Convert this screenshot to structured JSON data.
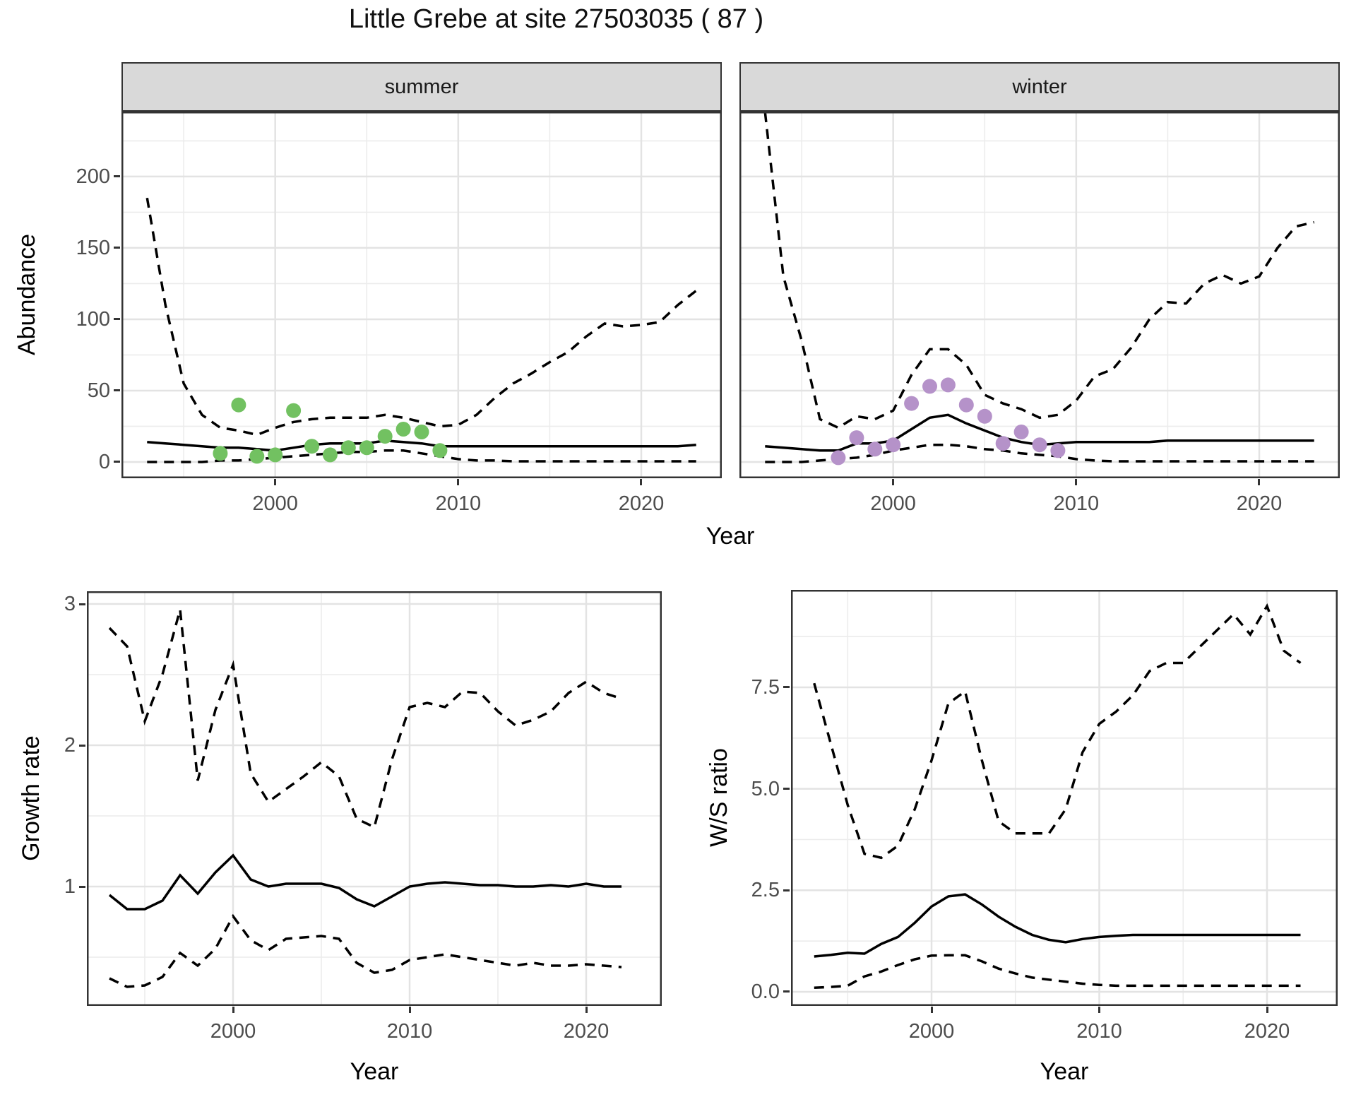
{
  "title": "Little Grebe at site 27503035 ( 87 )",
  "colors": {
    "summer_points": "#72C161",
    "winter_points": "#B592C9",
    "line": "#000000",
    "strip_background": "#D9D9D9",
    "panel_border": "#333333",
    "grid_major": "#E3E3E3",
    "grid_minor": "#ECECEC",
    "tick_text": "#4D4D4D"
  },
  "chart_data": [
    {
      "type": "line",
      "id": "abundance",
      "ylabel": "Abundance",
      "xlabel": "Year",
      "x": [
        1993,
        1994,
        1995,
        1996,
        1997,
        1998,
        1999,
        2000,
        2001,
        2002,
        2003,
        2004,
        2005,
        2006,
        2007,
        2008,
        2009,
        2010,
        2011,
        2012,
        2013,
        2014,
        2015,
        2016,
        2017,
        2018,
        2019,
        2020,
        2021,
        2022,
        2023
      ],
      "xlim": [
        1991.6,
        2024.4
      ],
      "ylim": [
        -11.4,
        245.5
      ],
      "xtick_values": [
        2000,
        2010,
        2020
      ],
      "xtick_labels": [
        "2000",
        "2010",
        "2020"
      ],
      "ytick_values": [
        0,
        50,
        100,
        150,
        200
      ],
      "ytick_labels": [
        "0",
        "50",
        "100",
        "150",
        "200"
      ],
      "grid": true,
      "legend": "none",
      "ci_style": "dashed",
      "facets": [
        {
          "label": "summer",
          "median": [
            14,
            13,
            12,
            11,
            10,
            10,
            9,
            8,
            10,
            12,
            13,
            13,
            13,
            15,
            14,
            13,
            11,
            11,
            11,
            11,
            11,
            11,
            11,
            11,
            11,
            11,
            11,
            11,
            11,
            11,
            12
          ],
          "upper_ci": [
            185,
            110,
            55,
            33,
            24,
            22,
            19,
            24,
            28,
            30,
            31,
            31,
            31,
            33,
            31,
            28,
            25,
            26,
            33,
            45,
            55,
            62,
            70,
            77,
            88,
            97,
            95,
            96,
            98,
            110,
            120
          ],
          "lower_ci": [
            0,
            0,
            0,
            0,
            1,
            1,
            2,
            3,
            4,
            5,
            6,
            7,
            7,
            8,
            8,
            6,
            4,
            2,
            1,
            1,
            0.5,
            0.5,
            0.5,
            0.5,
            0.5,
            0.5,
            0.5,
            0.5,
            0.5,
            0.5,
            0.5
          ],
          "points": {
            "years": [
              1997,
              1998,
              1999,
              2000,
              2001,
              2002,
              2003,
              2004,
              2005,
              2006,
              2007,
              2008,
              2009
            ],
            "values": [
              6,
              40,
              4,
              5,
              36,
              11,
              5,
              10,
              10,
              18,
              23,
              21,
              8
            ],
            "color": "#72C161"
          }
        },
        {
          "label": "winter",
          "median": [
            11,
            10,
            9,
            8,
            8,
            13,
            13,
            15,
            23,
            31,
            33,
            27,
            22,
            17,
            14,
            12,
            13,
            14,
            14,
            14,
            14,
            14,
            15,
            15,
            15,
            15,
            15,
            15,
            15,
            15,
            15
          ],
          "upper_ci": [
            245,
            130,
            85,
            30,
            24,
            32,
            30,
            36,
            61,
            79,
            79,
            68,
            47,
            41,
            37,
            31,
            33,
            43,
            60,
            65,
            80,
            100,
            112,
            111,
            125,
            131,
            125,
            130,
            150,
            165,
            168
          ],
          "lower_ci": [
            0,
            0,
            0,
            1,
            2,
            3,
            5,
            8,
            10,
            12,
            12,
            11,
            9,
            8,
            6,
            5,
            4,
            2,
            1,
            0.5,
            0.5,
            0.5,
            0.5,
            0.5,
            0.5,
            0.5,
            0.5,
            0.5,
            0.5,
            0.5,
            0.5
          ],
          "points": {
            "years": [
              1997,
              1998,
              1999,
              2000,
              2001,
              2002,
              2003,
              2004,
              2005,
              2006,
              2007,
              2008,
              2009
            ],
            "values": [
              3,
              17,
              9,
              12,
              41,
              53,
              54,
              40,
              32,
              13,
              21,
              12,
              8
            ],
            "color": "#B592C9"
          }
        }
      ]
    },
    {
      "type": "line",
      "id": "growth_rate",
      "ylabel": "Growth rate",
      "xlabel": "Year",
      "x": [
        1993,
        1994,
        1995,
        1996,
        1997,
        1998,
        1999,
        2000,
        2001,
        2002,
        2003,
        2004,
        2005,
        2006,
        2007,
        2008,
        2009,
        2010,
        2011,
        2012,
        2013,
        2014,
        2015,
        2016,
        2017,
        2018,
        2019,
        2020,
        2021,
        2022
      ],
      "xlim": [
        1991.72,
        2024.28
      ],
      "ylim": [
        0.155,
        3.09
      ],
      "xtick_values": [
        2000,
        2010,
        2020
      ],
      "xtick_labels": [
        "2000",
        "2010",
        "2020"
      ],
      "ytick_values": [
        1,
        2,
        3
      ],
      "ytick_labels": [
        "1",
        "2",
        "3"
      ],
      "grid": true,
      "legend": "none",
      "ci_style": "dashed",
      "median": [
        0.94,
        0.84,
        0.84,
        0.9,
        1.08,
        0.95,
        1.1,
        1.22,
        1.05,
        1.0,
        1.02,
        1.02,
        1.02,
        0.99,
        0.91,
        0.86,
        0.93,
        1.0,
        1.02,
        1.03,
        1.02,
        1.01,
        1.01,
        1.0,
        1.0,
        1.01,
        1.0,
        1.02,
        1.0,
        1.0
      ],
      "upper_ci": [
        2.83,
        2.7,
        2.17,
        2.5,
        2.96,
        1.75,
        2.25,
        2.57,
        1.8,
        1.6,
        1.69,
        1.78,
        1.88,
        1.78,
        1.48,
        1.42,
        1.9,
        2.27,
        2.3,
        2.27,
        2.38,
        2.37,
        2.24,
        2.14,
        2.18,
        2.24,
        2.37,
        2.45,
        2.37,
        2.33
      ],
      "lower_ci": [
        0.35,
        0.29,
        0.3,
        0.36,
        0.53,
        0.44,
        0.56,
        0.79,
        0.62,
        0.55,
        0.63,
        0.64,
        0.65,
        0.63,
        0.46,
        0.39,
        0.41,
        0.48,
        0.5,
        0.52,
        0.5,
        0.48,
        0.46,
        0.44,
        0.46,
        0.44,
        0.44,
        0.45,
        0.44,
        0.43
      ]
    },
    {
      "type": "line",
      "id": "ws_ratio",
      "ylabel": "W/S ratio",
      "xlabel": "Year",
      "x": [
        1993,
        1994,
        1995,
        1996,
        1997,
        1998,
        1999,
        2000,
        2001,
        2002,
        2003,
        2004,
        2005,
        2006,
        2007,
        2008,
        2009,
        2010,
        2011,
        2012,
        2013,
        2014,
        2015,
        2016,
        2017,
        2018,
        2019,
        2020,
        2021,
        2022
      ],
      "xlim": [
        1991.62,
        2024.21
      ],
      "ylim": [
        -0.348,
        9.9
      ],
      "xtick_values": [
        2000,
        2010,
        2020
      ],
      "xtick_labels": [
        "2000",
        "2010",
        "2020"
      ],
      "ytick_values": [
        0,
        2.5,
        5,
        7.5
      ],
      "ytick_labels": [
        "0.0",
        "2.5",
        "5.0",
        "7.5"
      ],
      "grid": true,
      "legend": "none",
      "ci_style": "dashed",
      "median": [
        0.87,
        0.91,
        0.96,
        0.94,
        1.18,
        1.35,
        1.7,
        2.1,
        2.35,
        2.4,
        2.15,
        1.85,
        1.6,
        1.4,
        1.28,
        1.22,
        1.3,
        1.35,
        1.38,
        1.4,
        1.4,
        1.4,
        1.4,
        1.4,
        1.4,
        1.4,
        1.4,
        1.4,
        1.4,
        1.4
      ],
      "upper_ci": [
        7.6,
        6.1,
        4.6,
        3.4,
        3.3,
        3.6,
        4.5,
        5.7,
        7.1,
        7.4,
        5.7,
        4.2,
        3.9,
        3.9,
        3.9,
        4.5,
        5.9,
        6.6,
        6.9,
        7.3,
        7.9,
        8.1,
        8.1,
        8.5,
        8.9,
        9.3,
        8.8,
        9.5,
        8.4,
        8.1
      ],
      "lower_ci": [
        0.1,
        0.12,
        0.15,
        0.38,
        0.5,
        0.66,
        0.8,
        0.89,
        0.9,
        0.9,
        0.75,
        0.57,
        0.45,
        0.35,
        0.3,
        0.25,
        0.2,
        0.17,
        0.15,
        0.15,
        0.15,
        0.15,
        0.15,
        0.15,
        0.15,
        0.15,
        0.15,
        0.15,
        0.15,
        0.15
      ]
    }
  ]
}
